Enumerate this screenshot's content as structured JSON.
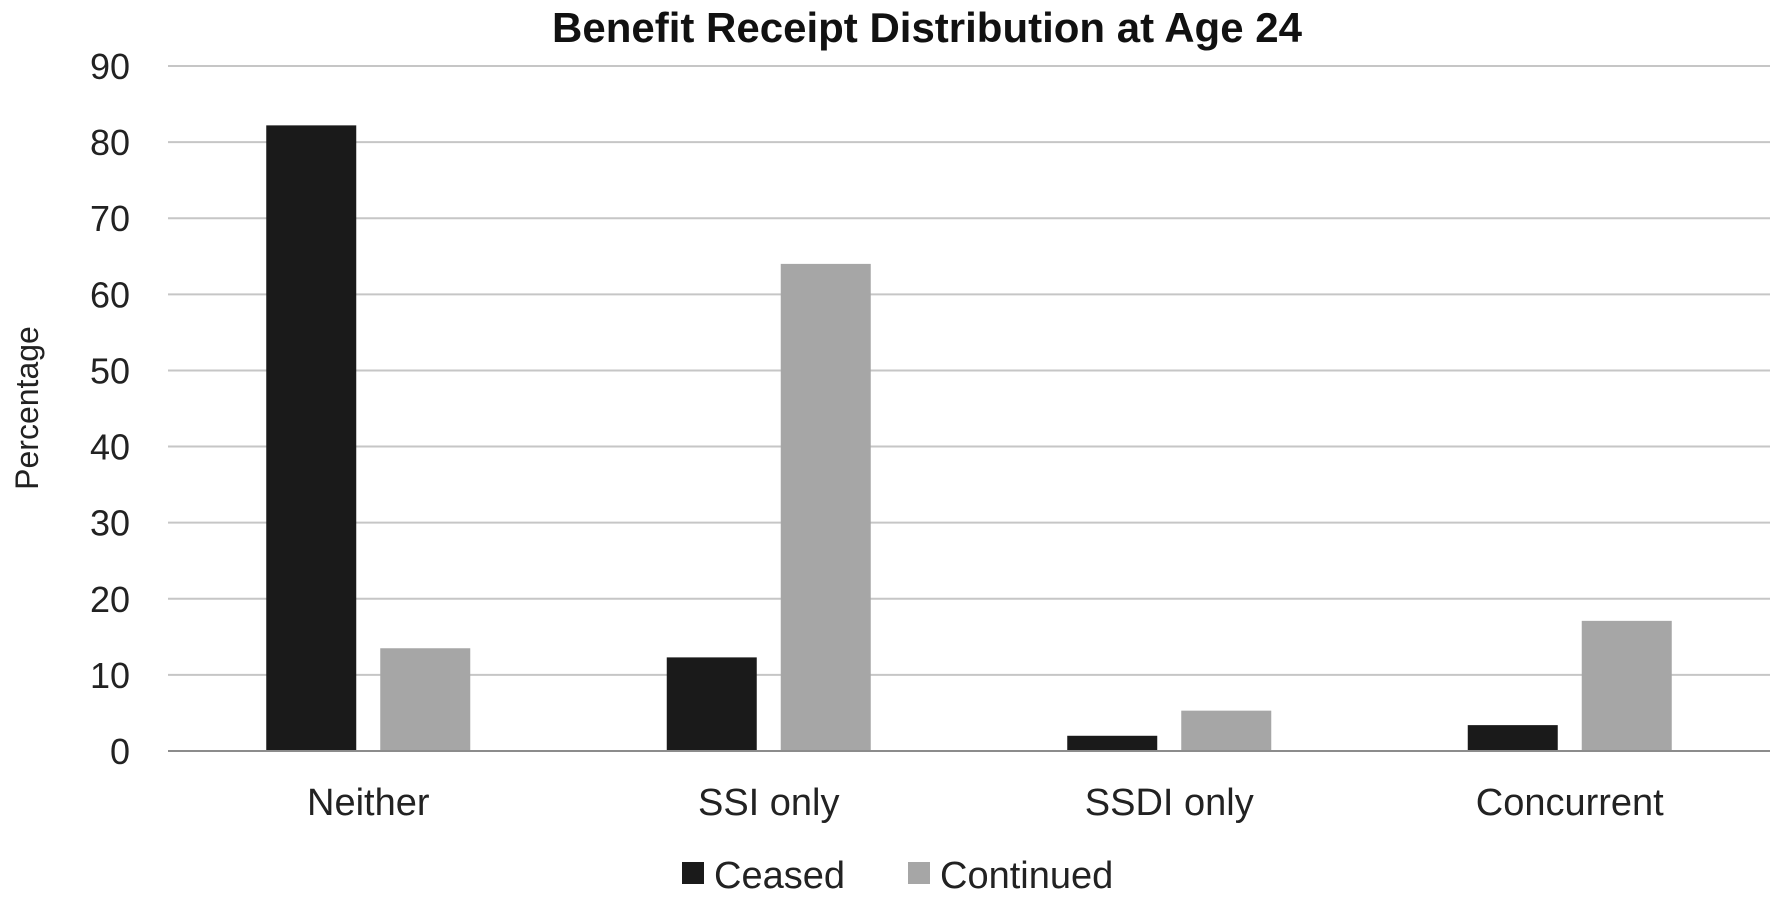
{
  "chart_data": {
    "type": "bar",
    "title": "Benefit Receipt Distribution at Age 24",
    "xlabel": "",
    "ylabel": "Percentage",
    "ylim": [
      0,
      90
    ],
    "yticks": [
      "0",
      "10",
      "20",
      "30",
      "40",
      "50",
      "60",
      "70",
      "80",
      "90"
    ],
    "categories": [
      "Neither",
      "SSI only",
      "SSDI only",
      "Concurrent"
    ],
    "series": [
      {
        "name": "Ceased",
        "color": "#1a1a1a",
        "values": [
          82.2,
          12.3,
          2.0,
          3.4
        ]
      },
      {
        "name": "Continued",
        "color": "#a6a6a6",
        "values": [
          13.5,
          64.0,
          5.3,
          17.1
        ]
      }
    ],
    "grid": true,
    "legend": "bottom"
  }
}
